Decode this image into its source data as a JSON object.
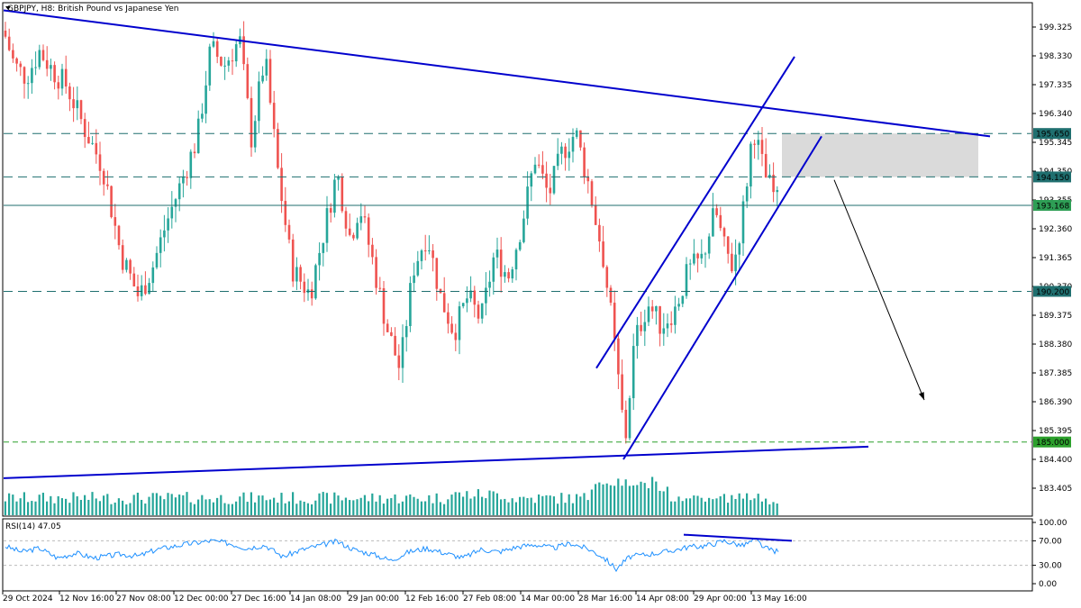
{
  "window": {
    "title": "GBPJPY, H8:  British Pound vs Japanese Yen"
  },
  "colors": {
    "bull": "#26a69a",
    "bear": "#ef5350",
    "volume": "#26a69a",
    "trendline": "#0000cd",
    "level_line": "#1f6f6f",
    "level_185": "#2ca02c",
    "price_label_bg": "#1f6f6f",
    "price_label_green": "#2e9e55",
    "rsi_line": "#1e90ff",
    "zone": "#d3d3d3"
  },
  "chart_data": [
    {
      "type": "candlestick",
      "title": "GBPJPY, H8:  British Pound vs Japanese Yen",
      "y_ticks": [
        "199.325",
        "198.330",
        "197.335",
        "196.340",
        "195.345",
        "194.350",
        "193.355",
        "192.360",
        "191.365",
        "190.370",
        "189.375",
        "188.380",
        "187.385",
        "186.390",
        "185.395",
        "184.400",
        "183.405"
      ],
      "ylim": [
        183.0,
        199.9
      ],
      "x_ticks": [
        "29 Oct 2024",
        "12 Nov 16:00",
        "27 Nov 08:00",
        "12 Dec 00:00",
        "27 Dec 16:00",
        "14 Jan 08:00",
        "29 Jan 00:00",
        "12 Feb 16:00",
        "27 Feb 08:00",
        "14 Mar 00:00",
        "28 Mar 16:00",
        "14 Apr 08:00",
        "29 Apr 00:00",
        "13 May 16:00"
      ],
      "price_path": [
        [
          0,
          199.2
        ],
        [
          12,
          198.0
        ],
        [
          25,
          197.6
        ],
        [
          40,
          198.5
        ],
        [
          55,
          197.8
        ],
        [
          70,
          197.3
        ],
        [
          90,
          195.8
        ],
        [
          110,
          194.5
        ],
        [
          130,
          191.5
        ],
        [
          150,
          190.0
        ],
        [
          165,
          191.0
        ],
        [
          180,
          192.5
        ],
        [
          200,
          194.2
        ],
        [
          215,
          195.5
        ],
        [
          230,
          198.6
        ],
        [
          245,
          198.0
        ],
        [
          262,
          198.9
        ],
        [
          275,
          195.5
        ],
        [
          290,
          198.3
        ],
        [
          305,
          194.2
        ],
        [
          320,
          191.0
        ],
        [
          340,
          190.1
        ],
        [
          355,
          192.2
        ],
        [
          370,
          194.3
        ],
        [
          385,
          192.0
        ],
        [
          395,
          193.2
        ],
        [
          410,
          191.2
        ],
        [
          425,
          189.0
        ],
        [
          440,
          187.5
        ],
        [
          455,
          191.0
        ],
        [
          470,
          192.2
        ],
        [
          485,
          190.0
        ],
        [
          500,
          188.8
        ],
        [
          515,
          190.0
        ],
        [
          530,
          189.2
        ],
        [
          545,
          191.5
        ],
        [
          560,
          190.7
        ],
        [
          575,
          192.5
        ],
        [
          590,
          194.8
        ],
        [
          605,
          193.5
        ],
        [
          620,
          195.0
        ],
        [
          635,
          195.7
        ],
        [
          650,
          193.8
        ],
        [
          665,
          191.5
        ],
        [
          675,
          189.2
        ],
        [
          690,
          185.0
        ],
        [
          700,
          188.4
        ],
        [
          715,
          189.8
        ],
        [
          730,
          189.0
        ],
        [
          745,
          189.6
        ],
        [
          760,
          190.9
        ],
        [
          775,
          191.3
        ],
        [
          790,
          193.0
        ],
        [
          800,
          191.7
        ],
        [
          810,
          191.0
        ],
        [
          822,
          193.2
        ],
        [
          832,
          195.9
        ],
        [
          845,
          194.2
        ],
        [
          860,
          193.2
        ]
      ],
      "levels": [
        {
          "value": "195.650",
          "style": "dashed"
        },
        {
          "value": "194.150",
          "style": "dashed"
        },
        {
          "value": "193.168",
          "style": "solid",
          "current": true
        },
        {
          "value": "190.200",
          "style": "dashed"
        },
        {
          "value": "185.000",
          "style": "dashed"
        }
      ],
      "trendlines": [
        {
          "from": [
            0,
            199.9
          ],
          "to": [
            1095,
            195.55
          ]
        },
        {
          "from": [
            0,
            183.75
          ],
          "to": [
            960,
            184.84
          ]
        },
        {
          "from": [
            658,
            187.55
          ],
          "to": [
            878,
            198.3
          ]
        },
        {
          "from": [
            688,
            184.4
          ],
          "to": [
            908,
            195.55
          ]
        }
      ],
      "zone": {
        "x_from": 864,
        "x_to": 1082,
        "top": 195.65,
        "bottom": 194.15
      },
      "arrow": {
        "from": [
          922,
          194.05
        ],
        "to": [
          1022,
          186.45
        ]
      },
      "legend": "none",
      "grid": false
    },
    {
      "type": "line",
      "title": "RSI(14) 47.05",
      "y_ticks": [
        "100.00",
        "70.00",
        "30.00",
        "0.00"
      ],
      "ylim": [
        0,
        100
      ],
      "levels": [
        70,
        30
      ],
      "series": [
        {
          "values_path": [
            [
              0,
              62
            ],
            [
              20,
              52
            ],
            [
              40,
              58
            ],
            [
              60,
              42
            ],
            [
              80,
              50
            ],
            [
              100,
              42
            ],
            [
              130,
              48
            ],
            [
              150,
              45
            ],
            [
              170,
              56
            ],
            [
              200,
              64
            ],
            [
              230,
              70
            ],
            [
              250,
              66
            ],
            [
              270,
              58
            ],
            [
              290,
              63
            ],
            [
              310,
              44
            ],
            [
              330,
              55
            ],
            [
              350,
              62
            ],
            [
              370,
              69
            ],
            [
              390,
              55
            ],
            [
              410,
              48
            ],
            [
              430,
              38
            ],
            [
              450,
              52
            ],
            [
              470,
              58
            ],
            [
              490,
              50
            ],
            [
              510,
              42
            ],
            [
              530,
              56
            ],
            [
              550,
              52
            ],
            [
              570,
              60
            ],
            [
              590,
              64
            ],
            [
              610,
              58
            ],
            [
              630,
              66
            ],
            [
              650,
              56
            ],
            [
              665,
              44
            ],
            [
              680,
              24
            ],
            [
              695,
              44
            ],
            [
              715,
              48
            ],
            [
              735,
              52
            ],
            [
              760,
              60
            ],
            [
              780,
              62
            ],
            [
              800,
              70
            ],
            [
              820,
              62
            ],
            [
              835,
              72
            ],
            [
              845,
              58
            ],
            [
              860,
              52
            ]
          ]
        }
      ],
      "divergence_line": {
        "from": [
          755,
          80
        ],
        "to": [
          875,
          70
        ]
      }
    }
  ]
}
